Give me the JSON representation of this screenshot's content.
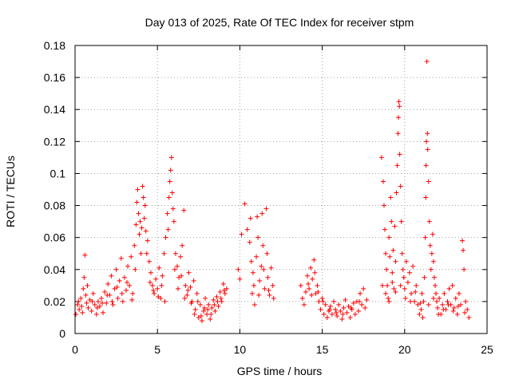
{
  "chart_data": {
    "type": "scatter",
    "title": "Day 013 of 2025, Rate Of TEC Index for receiver stpm",
    "xlabel": "GPS time / hours",
    "ylabel": "ROTI / TECUs",
    "xlim": [
      0,
      25
    ],
    "ylim": [
      0,
      0.18
    ],
    "xticks": [
      0,
      5,
      10,
      15,
      20,
      25
    ],
    "yticks": [
      0,
      0.02,
      0.04,
      0.06,
      0.08,
      0.1,
      0.12,
      0.14,
      0.16,
      0.18
    ],
    "grid": true,
    "marker": "plus",
    "color": "#ff0000",
    "points": [
      [
        0.05,
        0.012
      ],
      [
        0.15,
        0.018
      ],
      [
        0.25,
        0.015
      ],
      [
        0.35,
        0.022
      ],
      [
        0.45,
        0.013
      ],
      [
        0.5,
        0.028
      ],
      [
        0.55,
        0.035
      ],
      [
        0.6,
        0.049
      ],
      [
        0.65,
        0.024
      ],
      [
        0.7,
        0.019
      ],
      [
        0.8,
        0.016
      ],
      [
        0.9,
        0.021
      ],
      [
        1.0,
        0.014
      ],
      [
        1.1,
        0.025
      ],
      [
        1.2,
        0.018
      ],
      [
        1.3,
        0.012
      ],
      [
        1.4,
        0.02
      ],
      [
        1.5,
        0.017
      ],
      [
        1.6,
        0.022
      ],
      [
        1.7,
        0.013
      ],
      [
        1.8,
        0.026
      ],
      [
        1.9,
        0.019
      ],
      [
        2.0,
        0.031
      ],
      [
        2.1,
        0.024
      ],
      [
        2.2,
        0.036
      ],
      [
        2.3,
        0.018
      ],
      [
        2.4,
        0.028
      ],
      [
        2.5,
        0.04
      ],
      [
        2.6,
        0.022
      ],
      [
        2.7,
        0.033
      ],
      [
        2.8,
        0.047
      ],
      [
        2.9,
        0.02
      ],
      [
        3.0,
        0.035
      ],
      [
        3.1,
        0.027
      ],
      [
        3.2,
        0.042
      ],
      [
        3.3,
        0.03
      ],
      [
        3.4,
        0.048
      ],
      [
        3.5,
        0.025
      ],
      [
        3.6,
        0.055
      ],
      [
        3.7,
        0.068
      ],
      [
        3.75,
        0.082
      ],
      [
        3.8,
        0.09
      ],
      [
        3.85,
        0.075
      ],
      [
        3.9,
        0.062
      ],
      [
        4.0,
        0.05
      ],
      [
        4.1,
        0.092
      ],
      [
        4.15,
        0.085
      ],
      [
        4.2,
        0.072
      ],
      [
        4.3,
        0.064
      ],
      [
        4.4,
        0.058
      ],
      [
        4.5,
        0.045
      ],
      [
        4.6,
        0.038
      ],
      [
        4.7,
        0.03
      ],
      [
        4.8,
        0.025
      ],
      [
        4.9,
        0.034
      ],
      [
        5.0,
        0.028
      ],
      [
        5.1,
        0.041
      ],
      [
        5.2,
        0.022
      ],
      [
        5.3,
        0.036
      ],
      [
        5.4,
        0.05
      ],
      [
        5.5,
        0.06
      ],
      [
        5.6,
        0.075
      ],
      [
        5.7,
        0.085
      ],
      [
        5.75,
        0.095
      ],
      [
        5.8,
        0.102
      ],
      [
        5.85,
        0.11
      ],
      [
        5.9,
        0.088
      ],
      [
        6.0,
        0.07
      ],
      [
        6.1,
        0.05
      ],
      [
        6.2,
        0.042
      ],
      [
        6.3,
        0.035
      ],
      [
        6.4,
        0.048
      ],
      [
        6.5,
        0.055
      ],
      [
        6.6,
        0.077
      ],
      [
        6.7,
        0.03
      ],
      [
        6.8,
        0.024
      ],
      [
        6.9,
        0.038
      ],
      [
        7.0,
        0.029
      ],
      [
        7.1,
        0.02
      ],
      [
        7.2,
        0.033
      ],
      [
        7.3,
        0.015
      ],
      [
        7.4,
        0.025
      ],
      [
        7.5,
        0.01
      ],
      [
        7.6,
        0.018
      ],
      [
        7.7,
        0.008
      ],
      [
        7.8,
        0.014
      ],
      [
        7.9,
        0.022
      ],
      [
        8.0,
        0.012
      ],
      [
        8.1,
        0.018
      ],
      [
        8.2,
        0.009
      ],
      [
        8.3,
        0.016
      ],
      [
        8.4,
        0.021
      ],
      [
        8.5,
        0.014
      ],
      [
        8.6,
        0.023
      ],
      [
        8.7,
        0.017
      ],
      [
        8.8,
        0.026
      ],
      [
        8.9,
        0.02
      ],
      [
        9.0,
        0.031
      ],
      [
        9.1,
        0.025
      ],
      [
        9.2,
        0.028
      ],
      [
        0.2,
        0.02
      ],
      [
        0.4,
        0.017
      ],
      [
        0.75,
        0.03
      ],
      [
        1.05,
        0.02
      ],
      [
        1.35,
        0.016
      ],
      [
        1.65,
        0.019
      ],
      [
        1.95,
        0.024
      ],
      [
        2.25,
        0.02
      ],
      [
        2.55,
        0.029
      ],
      [
        2.85,
        0.025
      ],
      [
        3.15,
        0.032
      ],
      [
        3.45,
        0.021
      ],
      [
        3.65,
        0.04
      ],
      [
        3.95,
        0.07
      ],
      [
        4.05,
        0.066
      ],
      [
        4.25,
        0.08
      ],
      [
        4.35,
        0.05
      ],
      [
        4.55,
        0.032
      ],
      [
        4.75,
        0.027
      ],
      [
        5.05,
        0.023
      ],
      [
        5.25,
        0.03
      ],
      [
        5.45,
        0.02
      ],
      [
        5.65,
        0.065
      ],
      [
        5.95,
        0.078
      ],
      [
        6.05,
        0.04
      ],
      [
        6.25,
        0.028
      ],
      [
        6.45,
        0.036
      ],
      [
        6.65,
        0.022
      ],
      [
        6.85,
        0.027
      ],
      [
        7.05,
        0.019
      ],
      [
        7.25,
        0.012
      ],
      [
        7.45,
        0.02
      ],
      [
        7.65,
        0.011
      ],
      [
        7.85,
        0.016
      ],
      [
        8.05,
        0.015
      ],
      [
        8.25,
        0.012
      ],
      [
        8.45,
        0.018
      ],
      [
        8.65,
        0.02
      ],
      [
        8.85,
        0.022
      ],
      [
        9.05,
        0.027
      ],
      [
        9.9,
        0.04
      ],
      [
        10.0,
        0.034
      ],
      [
        10.1,
        0.062
      ],
      [
        10.3,
        0.081
      ],
      [
        10.45,
        0.065
      ],
      [
        10.6,
        0.057
      ],
      [
        10.65,
        0.072
      ],
      [
        10.7,
        0.045
      ],
      [
        10.75,
        0.025
      ],
      [
        10.8,
        0.038
      ],
      [
        10.9,
        0.018
      ],
      [
        11.0,
        0.048
      ],
      [
        11.05,
        0.073
      ],
      [
        11.1,
        0.06
      ],
      [
        11.2,
        0.033
      ],
      [
        11.3,
        0.042
      ],
      [
        11.35,
        0.075
      ],
      [
        11.4,
        0.055
      ],
      [
        11.5,
        0.028
      ],
      [
        11.6,
        0.078
      ],
      [
        11.65,
        0.05
      ],
      [
        11.7,
        0.035
      ],
      [
        11.8,
        0.024
      ],
      [
        11.9,
        0.041
      ],
      [
        12.0,
        0.03
      ],
      [
        12.05,
        0.022
      ],
      [
        10.85,
        0.03
      ],
      [
        11.15,
        0.024
      ],
      [
        11.45,
        0.04
      ],
      [
        11.75,
        0.027
      ],
      [
        13.7,
        0.03
      ],
      [
        13.8,
        0.022
      ],
      [
        13.9,
        0.018
      ],
      [
        14.0,
        0.026
      ],
      [
        14.1,
        0.036
      ],
      [
        14.2,
        0.028
      ],
      [
        14.3,
        0.041
      ],
      [
        14.4,
        0.034
      ],
      [
        14.5,
        0.046
      ],
      [
        14.6,
        0.025
      ],
      [
        14.7,
        0.03
      ],
      [
        14.8,
        0.02
      ],
      [
        14.9,
        0.015
      ],
      [
        15.0,
        0.022
      ],
      [
        15.1,
        0.012
      ],
      [
        15.2,
        0.018
      ],
      [
        15.3,
        0.01
      ],
      [
        15.4,
        0.014
      ],
      [
        15.5,
        0.017
      ],
      [
        15.6,
        0.012
      ],
      [
        15.7,
        0.02
      ],
      [
        15.8,
        0.015
      ],
      [
        15.9,
        0.011
      ],
      [
        16.0,
        0.018
      ],
      [
        16.1,
        0.014
      ],
      [
        16.2,
        0.009
      ],
      [
        16.3,
        0.016
      ],
      [
        16.4,
        0.021
      ],
      [
        16.5,
        0.013
      ],
      [
        16.6,
        0.017
      ],
      [
        16.7,
        0.01
      ],
      [
        16.8,
        0.015
      ],
      [
        16.9,
        0.019
      ],
      [
        17.0,
        0.012
      ],
      [
        17.1,
        0.02
      ],
      [
        17.2,
        0.014
      ],
      [
        17.3,
        0.025
      ],
      [
        17.4,
        0.018
      ],
      [
        17.5,
        0.028
      ],
      [
        17.6,
        0.016
      ],
      [
        17.7,
        0.021
      ],
      [
        14.15,
        0.031
      ],
      [
        14.35,
        0.024
      ],
      [
        14.55,
        0.038
      ],
      [
        14.75,
        0.026
      ],
      [
        15.05,
        0.02
      ],
      [
        15.45,
        0.015
      ],
      [
        15.85,
        0.013
      ],
      [
        16.25,
        0.012
      ],
      [
        16.75,
        0.016
      ],
      [
        17.25,
        0.02
      ],
      [
        18.6,
        0.11
      ],
      [
        18.7,
        0.095
      ],
      [
        18.75,
        0.08
      ],
      [
        18.8,
        0.065
      ],
      [
        18.85,
        0.05
      ],
      [
        18.9,
        0.04
      ],
      [
        18.95,
        0.03
      ],
      [
        19.0,
        0.022
      ],
      [
        19.05,
        0.06
      ],
      [
        19.1,
        0.048
      ],
      [
        19.15,
        0.085
      ],
      [
        19.2,
        0.07
      ],
      [
        19.25,
        0.038
      ],
      [
        19.3,
        0.052
      ],
      [
        19.35,
        0.028
      ],
      [
        19.4,
        0.067
      ],
      [
        19.45,
        0.045
      ],
      [
        19.5,
        0.088
      ],
      [
        19.55,
        0.105
      ],
      [
        19.6,
        0.125
      ],
      [
        19.62,
        0.135
      ],
      [
        19.65,
        0.145
      ],
      [
        19.68,
        0.142
      ],
      [
        19.7,
        0.112
      ],
      [
        19.75,
        0.092
      ],
      [
        19.8,
        0.07
      ],
      [
        19.85,
        0.05
      ],
      [
        19.9,
        0.04
      ],
      [
        19.95,
        0.035
      ],
      [
        20.0,
        0.028
      ],
      [
        20.1,
        0.045
      ],
      [
        20.2,
        0.032
      ],
      [
        20.3,
        0.038
      ],
      [
        20.4,
        0.025
      ],
      [
        20.5,
        0.042
      ],
      [
        20.6,
        0.02
      ],
      [
        20.7,
        0.03
      ],
      [
        20.8,
        0.018
      ],
      [
        20.9,
        0.012
      ],
      [
        21.0,
        0.015
      ],
      [
        21.05,
        0.025
      ],
      [
        21.1,
        0.01
      ],
      [
        21.15,
        0.02
      ],
      [
        21.2,
        0.035
      ],
      [
        21.25,
        0.06
      ],
      [
        21.28,
        0.085
      ],
      [
        21.3,
        0.105
      ],
      [
        21.32,
        0.12
      ],
      [
        21.35,
        0.17
      ],
      [
        21.38,
        0.125
      ],
      [
        21.4,
        0.115
      ],
      [
        21.45,
        0.095
      ],
      [
        21.5,
        0.07
      ],
      [
        21.55,
        0.055
      ],
      [
        21.6,
        0.04
      ],
      [
        21.65,
        0.05
      ],
      [
        21.7,
        0.062
      ],
      [
        21.75,
        0.045
      ],
      [
        21.8,
        0.035
      ],
      [
        21.85,
        0.03
      ],
      [
        21.9,
        0.025
      ],
      [
        21.95,
        0.02
      ],
      [
        22.0,
        0.016
      ],
      [
        22.1,
        0.022
      ],
      [
        22.2,
        0.012
      ],
      [
        22.3,
        0.018
      ],
      [
        22.4,
        0.025
      ],
      [
        22.5,
        0.015
      ],
      [
        22.6,
        0.02
      ],
      [
        22.7,
        0.028
      ],
      [
        22.8,
        0.018
      ],
      [
        22.9,
        0.03
      ],
      [
        23.0,
        0.016
      ],
      [
        23.1,
        0.022
      ],
      [
        23.2,
        0.012
      ],
      [
        23.3,
        0.025
      ],
      [
        23.4,
        0.018
      ],
      [
        23.5,
        0.058
      ],
      [
        23.55,
        0.052
      ],
      [
        23.6,
        0.04
      ],
      [
        23.7,
        0.02
      ],
      [
        23.8,
        0.015
      ],
      [
        23.9,
        0.01
      ],
      [
        18.65,
        0.03
      ],
      [
        18.85,
        0.025
      ],
      [
        19.05,
        0.02
      ],
      [
        19.25,
        0.032
      ],
      [
        19.45,
        0.026
      ],
      [
        19.75,
        0.03
      ],
      [
        20.05,
        0.022
      ],
      [
        20.35,
        0.02
      ],
      [
        20.65,
        0.026
      ],
      [
        20.95,
        0.019
      ],
      [
        21.45,
        0.018
      ],
      [
        21.75,
        0.022
      ],
      [
        22.05,
        0.012
      ],
      [
        22.35,
        0.015
      ],
      [
        22.65,
        0.018
      ],
      [
        22.95,
        0.014
      ],
      [
        23.25,
        0.017
      ],
      [
        23.65,
        0.013
      ]
    ]
  }
}
